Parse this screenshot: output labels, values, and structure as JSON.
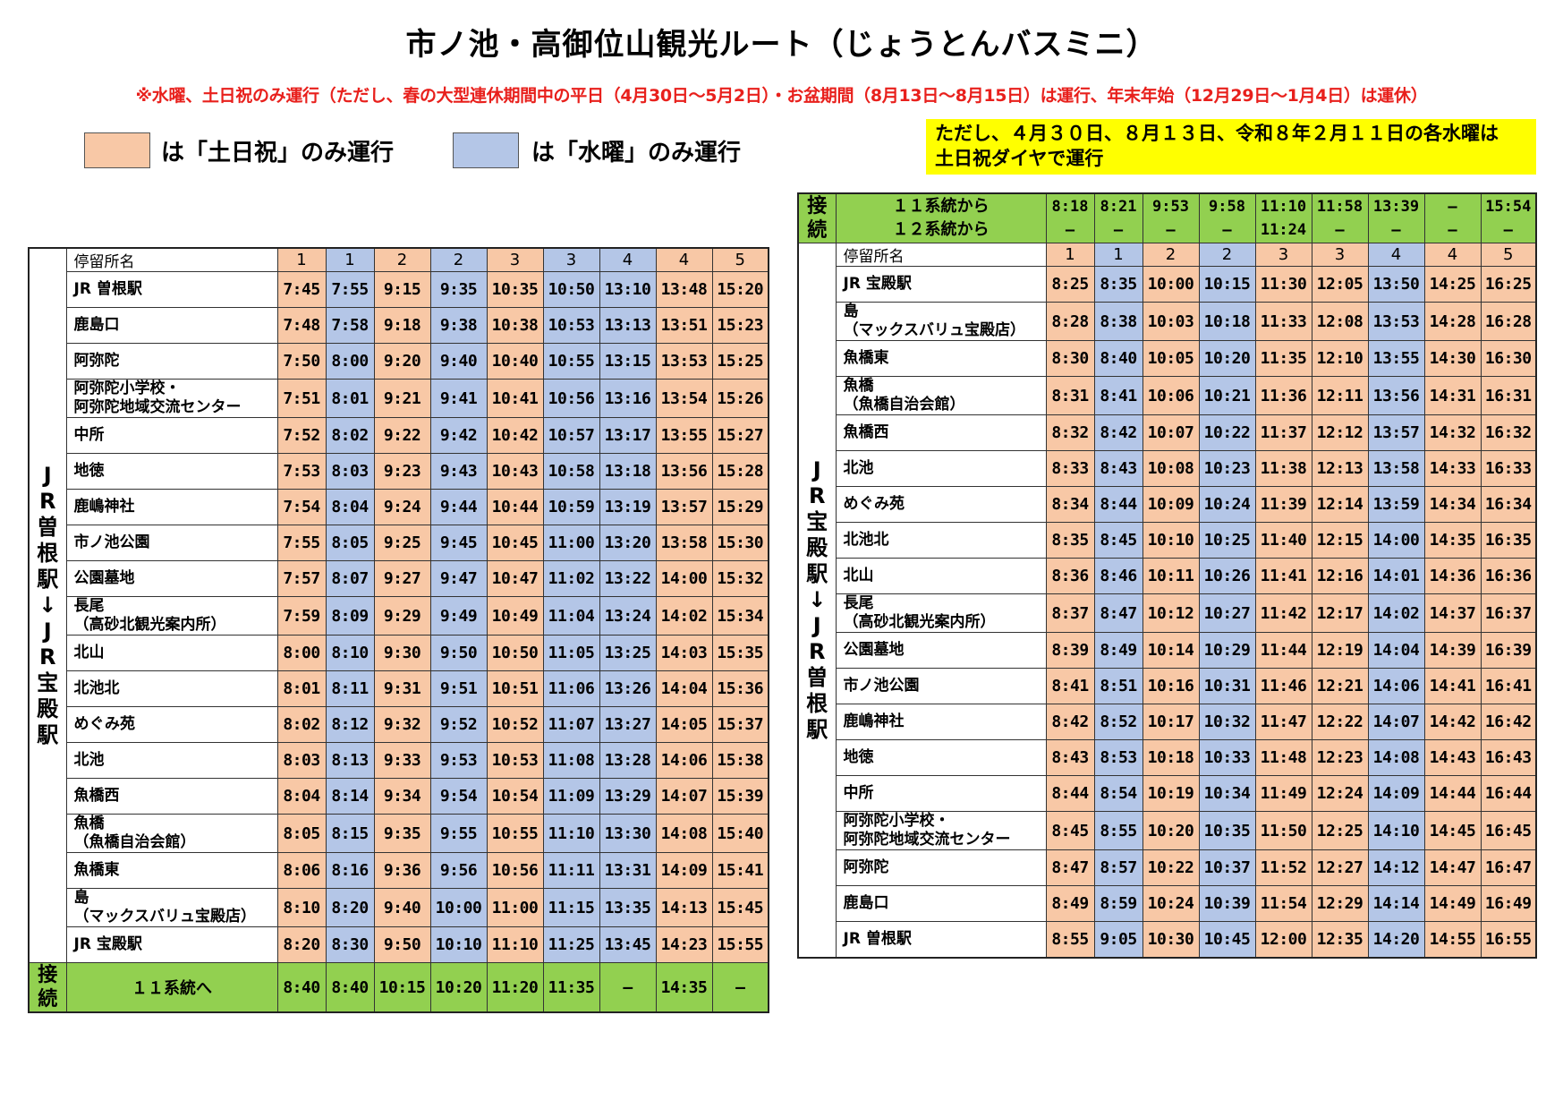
{
  "title": "市ノ池・高御位山観光ルート（じょうとんバスミニ）",
  "notice": "※水曜、土日祝のみ運行（ただし、春の大型連休期間中の平日（4月30日～5月2日）・お盆期間（8月13日～8月15日）は運行、年末年始（12月29日～1月4日）は運休）",
  "legend": {
    "weekend_label": "は「土日祝」のみ運行",
    "wednesday_label": "は「水曜」のみ運行",
    "weekend_color": "#f8c8a6",
    "wednesday_color": "#b4c6e7"
  },
  "yellow_note": {
    "line1": "ただし、４月３０日、８月１３日、令和８年２月１１日の各水曜は",
    "line2": "土日祝ダイヤで運行",
    "color": "#ffff00"
  },
  "left_table": {
    "direction_label": "JR曽根駅↓JR宝殿駅",
    "stop_header": "停留所名",
    "trip_numbers": [
      "1",
      "1",
      "2",
      "2",
      "3",
      "3",
      "4",
      "4",
      "5"
    ],
    "trip_types": [
      "wk",
      "wd",
      "wk",
      "wd",
      "wk",
      "wd",
      "wd",
      "wk",
      "wk"
    ],
    "rows": [
      {
        "stop": [
          "JR 曽根駅"
        ],
        "times": [
          "7:45",
          "7:55",
          "9:15",
          "9:35",
          "10:35",
          "10:50",
          "13:10",
          "13:48",
          "15:20"
        ]
      },
      {
        "stop": [
          "鹿島口"
        ],
        "times": [
          "7:48",
          "7:58",
          "9:18",
          "9:38",
          "10:38",
          "10:53",
          "13:13",
          "13:51",
          "15:23"
        ]
      },
      {
        "stop": [
          "阿弥陀"
        ],
        "times": [
          "7:50",
          "8:00",
          "9:20",
          "9:40",
          "10:40",
          "10:55",
          "13:15",
          "13:53",
          "15:25"
        ]
      },
      {
        "stop": [
          "阿弥陀小学校・",
          "阿弥陀地域交流センター"
        ],
        "times": [
          "7:51",
          "8:01",
          "9:21",
          "9:41",
          "10:41",
          "10:56",
          "13:16",
          "13:54",
          "15:26"
        ]
      },
      {
        "stop": [
          "中所"
        ],
        "times": [
          "7:52",
          "8:02",
          "9:22",
          "9:42",
          "10:42",
          "10:57",
          "13:17",
          "13:55",
          "15:27"
        ]
      },
      {
        "stop": [
          "地徳"
        ],
        "times": [
          "7:53",
          "8:03",
          "9:23",
          "9:43",
          "10:43",
          "10:58",
          "13:18",
          "13:56",
          "15:28"
        ]
      },
      {
        "stop": [
          "鹿嶋神社"
        ],
        "times": [
          "7:54",
          "8:04",
          "9:24",
          "9:44",
          "10:44",
          "10:59",
          "13:19",
          "13:57",
          "15:29"
        ]
      },
      {
        "stop": [
          "市ノ池公園"
        ],
        "times": [
          "7:55",
          "8:05",
          "9:25",
          "9:45",
          "10:45",
          "11:00",
          "13:20",
          "13:58",
          "15:30"
        ]
      },
      {
        "stop": [
          "公園墓地"
        ],
        "times": [
          "7:57",
          "8:07",
          "9:27",
          "9:47",
          "10:47",
          "11:02",
          "13:22",
          "14:00",
          "15:32"
        ]
      },
      {
        "stop": [
          "長尾",
          "（高砂北観光案内所）"
        ],
        "times": [
          "7:59",
          "8:09",
          "9:29",
          "9:49",
          "10:49",
          "11:04",
          "13:24",
          "14:02",
          "15:34"
        ]
      },
      {
        "stop": [
          "北山"
        ],
        "times": [
          "8:00",
          "8:10",
          "9:30",
          "9:50",
          "10:50",
          "11:05",
          "13:25",
          "14:03",
          "15:35"
        ]
      },
      {
        "stop": [
          "北池北"
        ],
        "times": [
          "8:01",
          "8:11",
          "9:31",
          "9:51",
          "10:51",
          "11:06",
          "13:26",
          "14:04",
          "15:36"
        ]
      },
      {
        "stop": [
          "めぐみ苑"
        ],
        "times": [
          "8:02",
          "8:12",
          "9:32",
          "9:52",
          "10:52",
          "11:07",
          "13:27",
          "14:05",
          "15:37"
        ]
      },
      {
        "stop": [
          "北池"
        ],
        "times": [
          "8:03",
          "8:13",
          "9:33",
          "9:53",
          "10:53",
          "11:08",
          "13:28",
          "14:06",
          "15:38"
        ]
      },
      {
        "stop": [
          "魚橋西"
        ],
        "times": [
          "8:04",
          "8:14",
          "9:34",
          "9:54",
          "10:54",
          "11:09",
          "13:29",
          "14:07",
          "15:39"
        ]
      },
      {
        "stop": [
          "魚橋",
          "（魚橋自治会館）"
        ],
        "times": [
          "8:05",
          "8:15",
          "9:35",
          "9:55",
          "10:55",
          "11:10",
          "13:30",
          "14:08",
          "15:40"
        ]
      },
      {
        "stop": [
          "魚橋東"
        ],
        "times": [
          "8:06",
          "8:16",
          "9:36",
          "9:56",
          "10:56",
          "11:11",
          "13:31",
          "14:09",
          "15:41"
        ]
      },
      {
        "stop": [
          "島",
          "（マックスバリュ宝殿店）"
        ],
        "times": [
          "8:10",
          "8:20",
          "9:40",
          "10:00",
          "11:00",
          "11:15",
          "13:35",
          "14:13",
          "15:45"
        ]
      },
      {
        "stop": [
          "JR 宝殿駅"
        ],
        "times": [
          "8:20",
          "8:30",
          "9:50",
          "10:10",
          "11:10",
          "11:25",
          "13:45",
          "14:23",
          "15:55"
        ]
      }
    ],
    "connection": {
      "label": "接続",
      "text": "１１系統へ",
      "times": [
        "8:40",
        "8:40",
        "10:15",
        "10:20",
        "11:20",
        "11:35",
        "—",
        "14:35",
        "—"
      ]
    }
  },
  "right_table": {
    "direction_label": "JR宝殿駅↓JR曽根駅",
    "stop_header": "停留所名",
    "trip_numbers": [
      "1",
      "1",
      "2",
      "2",
      "3",
      "3",
      "4",
      "4",
      "5"
    ],
    "trip_types": [
      "wk",
      "wd",
      "wk",
      "wd",
      "wk",
      "wk",
      "wd",
      "wk",
      "wk"
    ],
    "connection": {
      "label": "接続",
      "from11": "１１系統から",
      "from12": "１２系統から",
      "times11": [
        "8:18",
        "8:21",
        "9:53",
        "9:58",
        "11:10",
        "11:58",
        "13:39",
        "—",
        "15:54"
      ],
      "times12": [
        "—",
        "—",
        "—",
        "—",
        "11:24",
        "—",
        "—",
        "—",
        "—"
      ]
    },
    "rows": [
      {
        "stop": [
          "JR 宝殿駅"
        ],
        "times": [
          "8:25",
          "8:35",
          "10:00",
          "10:15",
          "11:30",
          "12:05",
          "13:50",
          "14:25",
          "16:25"
        ]
      },
      {
        "stop": [
          "島",
          "（マックスバリュ宝殿店）"
        ],
        "times": [
          "8:28",
          "8:38",
          "10:03",
          "10:18",
          "11:33",
          "12:08",
          "13:53",
          "14:28",
          "16:28"
        ]
      },
      {
        "stop": [
          "魚橋東"
        ],
        "times": [
          "8:30",
          "8:40",
          "10:05",
          "10:20",
          "11:35",
          "12:10",
          "13:55",
          "14:30",
          "16:30"
        ]
      },
      {
        "stop": [
          "魚橋",
          "（魚橋自治会館）"
        ],
        "times": [
          "8:31",
          "8:41",
          "10:06",
          "10:21",
          "11:36",
          "12:11",
          "13:56",
          "14:31",
          "16:31"
        ]
      },
      {
        "stop": [
          "魚橋西"
        ],
        "times": [
          "8:32",
          "8:42",
          "10:07",
          "10:22",
          "11:37",
          "12:12",
          "13:57",
          "14:32",
          "16:32"
        ]
      },
      {
        "stop": [
          "北池"
        ],
        "times": [
          "8:33",
          "8:43",
          "10:08",
          "10:23",
          "11:38",
          "12:13",
          "13:58",
          "14:33",
          "16:33"
        ]
      },
      {
        "stop": [
          "めぐみ苑"
        ],
        "times": [
          "8:34",
          "8:44",
          "10:09",
          "10:24",
          "11:39",
          "12:14",
          "13:59",
          "14:34",
          "16:34"
        ]
      },
      {
        "stop": [
          "北池北"
        ],
        "times": [
          "8:35",
          "8:45",
          "10:10",
          "10:25",
          "11:40",
          "12:15",
          "14:00",
          "14:35",
          "16:35"
        ]
      },
      {
        "stop": [
          "北山"
        ],
        "times": [
          "8:36",
          "8:46",
          "10:11",
          "10:26",
          "11:41",
          "12:16",
          "14:01",
          "14:36",
          "16:36"
        ]
      },
      {
        "stop": [
          "長尾",
          "（高砂北観光案内所）"
        ],
        "times": [
          "8:37",
          "8:47",
          "10:12",
          "10:27",
          "11:42",
          "12:17",
          "14:02",
          "14:37",
          "16:37"
        ]
      },
      {
        "stop": [
          "公園墓地"
        ],
        "times": [
          "8:39",
          "8:49",
          "10:14",
          "10:29",
          "11:44",
          "12:19",
          "14:04",
          "14:39",
          "16:39"
        ]
      },
      {
        "stop": [
          "市ノ池公園"
        ],
        "times": [
          "8:41",
          "8:51",
          "10:16",
          "10:31",
          "11:46",
          "12:21",
          "14:06",
          "14:41",
          "16:41"
        ]
      },
      {
        "stop": [
          "鹿嶋神社"
        ],
        "times": [
          "8:42",
          "8:52",
          "10:17",
          "10:32",
          "11:47",
          "12:22",
          "14:07",
          "14:42",
          "16:42"
        ]
      },
      {
        "stop": [
          "地徳"
        ],
        "times": [
          "8:43",
          "8:53",
          "10:18",
          "10:33",
          "11:48",
          "12:23",
          "14:08",
          "14:43",
          "16:43"
        ]
      },
      {
        "stop": [
          "中所"
        ],
        "times": [
          "8:44",
          "8:54",
          "10:19",
          "10:34",
          "11:49",
          "12:24",
          "14:09",
          "14:44",
          "16:44"
        ]
      },
      {
        "stop": [
          "阿弥陀小学校・",
          "阿弥陀地域交流センター"
        ],
        "times": [
          "8:45",
          "8:55",
          "10:20",
          "10:35",
          "11:50",
          "12:25",
          "14:10",
          "14:45",
          "16:45"
        ]
      },
      {
        "stop": [
          "阿弥陀"
        ],
        "times": [
          "8:47",
          "8:57",
          "10:22",
          "10:37",
          "11:52",
          "12:27",
          "14:12",
          "14:47",
          "16:47"
        ]
      },
      {
        "stop": [
          "鹿島口"
        ],
        "times": [
          "8:49",
          "8:59",
          "10:24",
          "10:39",
          "11:54",
          "12:29",
          "14:14",
          "14:49",
          "16:49"
        ]
      },
      {
        "stop": [
          "JR 曽根駅"
        ],
        "times": [
          "8:55",
          "9:05",
          "10:30",
          "10:45",
          "12:00",
          "12:35",
          "14:20",
          "14:55",
          "16:55"
        ]
      }
    ]
  }
}
